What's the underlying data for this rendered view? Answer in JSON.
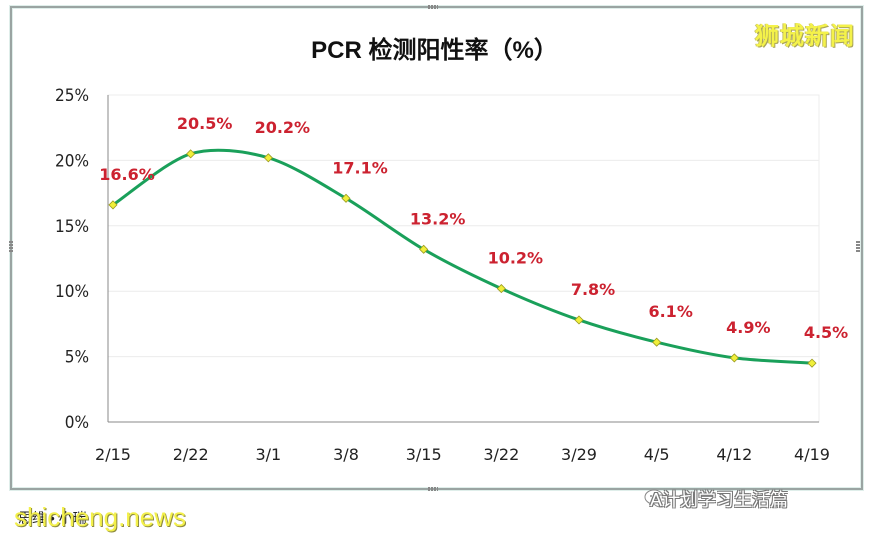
{
  "chart_data": {
    "type": "line",
    "title": "PCR 检测阳性率（%）",
    "xlabel": "",
    "ylabel": "",
    "categories": [
      "2/15",
      "2/22",
      "3/1",
      "3/8",
      "3/15",
      "3/22",
      "3/29",
      "4/5",
      "4/12",
      "4/19"
    ],
    "series": [
      {
        "name": "PCR 检测阳性率",
        "values": [
          16.6,
          20.5,
          20.2,
          17.1,
          13.2,
          10.2,
          7.8,
          6.1,
          4.9,
          4.5
        ],
        "labels": [
          "16.6%",
          "20.5%",
          "20.2%",
          "17.1%",
          "13.2%",
          "10.2%",
          "7.8%",
          "6.1%",
          "4.9%",
          "4.5%"
        ],
        "line_color": "#1aa05a",
        "marker_color": "#f0ef3a",
        "label_color": "#cc2230"
      }
    ],
    "ylim": [
      0,
      25
    ],
    "yticks": [
      "0%",
      "5%",
      "10%",
      "15%",
      "20%",
      "25%"
    ],
    "grid": true,
    "legend": "none"
  },
  "watermarks": {
    "brand_top_right": "狮城新闻",
    "footer_left": "shicheng.news",
    "footer_left_under": "思维 • 小瑞",
    "footer_right": "A计划学习生活篇"
  },
  "icons": {
    "wechat": "wechat-icon"
  }
}
